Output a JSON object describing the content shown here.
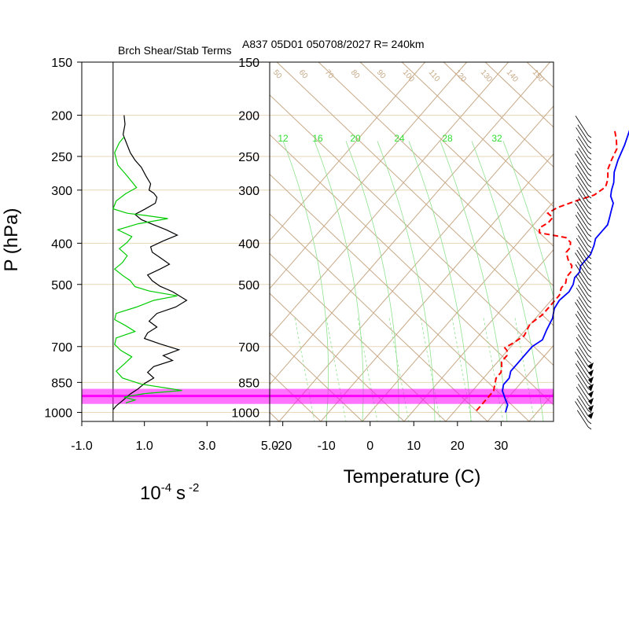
{
  "chart_data": [
    {
      "type": "line",
      "title": "Brch Shear/Stab Terms",
      "xlabel_base": "10",
      "xlabel_exp1": "-4",
      "xlabel_unit": "s",
      "xlabel_exp2": "-2",
      "ylabel": "P (hPa)",
      "x_ticks": [
        "-1.0",
        "1.0",
        "3.0",
        "5.0"
      ],
      "xlim": [
        -1.0,
        5.0
      ],
      "y_scale": "log",
      "ylim": [
        1050,
        150
      ],
      "p_ticks": [
        {
          "p": 150,
          "label": "150"
        },
        {
          "p": 200,
          "label": "200"
        },
        {
          "p": 250,
          "label": "250"
        },
        {
          "p": 300,
          "label": "300"
        },
        {
          "p": 400,
          "label": "400"
        },
        {
          "p": 500,
          "label": "500"
        },
        {
          "p": 700,
          "label": "700"
        },
        {
          "p": 850,
          "label": "850"
        },
        {
          "p": 1000,
          "label": "1000"
        }
      ],
      "series": [
        {
          "color": "#000000",
          "points": [
            [
              0.35,
              200
            ],
            [
              0.38,
              210
            ],
            [
              0.32,
              222
            ],
            [
              0.42,
              232
            ],
            [
              0.55,
              245
            ],
            [
              0.7,
              255
            ],
            [
              0.9,
              265
            ],
            [
              1.05,
              278
            ],
            [
              1.2,
              290
            ],
            [
              1.15,
              300
            ],
            [
              1.3,
              305
            ],
            [
              1.4,
              312
            ],
            [
              1.35,
              322
            ],
            [
              1.0,
              333
            ],
            [
              0.7,
              342
            ],
            [
              0.9,
              352
            ],
            [
              1.3,
              362
            ],
            [
              1.7,
              372
            ],
            [
              2.05,
              383
            ],
            [
              1.6,
              395
            ],
            [
              1.2,
              408
            ],
            [
              1.25,
              420
            ],
            [
              1.55,
              435
            ],
            [
              1.8,
              448
            ],
            [
              1.5,
              460
            ],
            [
              1.1,
              475
            ],
            [
              1.25,
              490
            ],
            [
              1.5,
              505
            ],
            [
              1.9,
              520
            ],
            [
              2.35,
              545
            ],
            [
              2.0,
              565
            ],
            [
              1.4,
              585
            ],
            [
              1.15,
              610
            ],
            [
              1.4,
              630
            ],
            [
              1.1,
              650
            ],
            [
              1.0,
              670
            ],
            [
              1.5,
              690
            ],
            [
              2.1,
              712
            ],
            [
              1.6,
              735
            ],
            [
              1.9,
              755
            ],
            [
              1.3,
              780
            ],
            [
              1.1,
              805
            ],
            [
              1.3,
              830
            ],
            [
              1.0,
              855
            ],
            [
              0.8,
              880
            ],
            [
              0.55,
              905
            ],
            [
              0.4,
              925
            ],
            [
              0.25,
              945
            ],
            [
              0.1,
              965
            ],
            [
              0.0,
              985
            ]
          ]
        },
        {
          "color": "#00cc00",
          "points": [
            [
              0.35,
              225
            ],
            [
              0.2,
              232
            ],
            [
              0.05,
              245
            ],
            [
              0.15,
              262
            ],
            [
              0.45,
              278
            ],
            [
              0.75,
              296
            ],
            [
              0.4,
              306
            ],
            [
              0.1,
              318
            ],
            [
              0.0,
              332
            ],
            [
              0.45,
              340
            ],
            [
              1.0,
              344
            ],
            [
              1.75,
              350
            ],
            [
              0.8,
              360
            ],
            [
              0.15,
              372
            ],
            [
              0.6,
              386
            ],
            [
              0.45,
              398
            ],
            [
              0.2,
              412
            ],
            [
              0.45,
              428
            ],
            [
              0.3,
              444
            ],
            [
              0.05,
              460
            ],
            [
              0.3,
              476
            ],
            [
              0.55,
              490
            ],
            [
              0.7,
              506
            ],
            [
              1.15,
              518
            ],
            [
              2.05,
              532
            ],
            [
              1.3,
              545
            ],
            [
              0.75,
              565
            ],
            [
              0.1,
              585
            ],
            [
              0.05,
              605
            ],
            [
              0.4,
              625
            ],
            [
              0.7,
              645
            ],
            [
              0.1,
              668
            ],
            [
              0.05,
              692
            ],
            [
              0.25,
              715
            ],
            [
              0.6,
              740
            ],
            [
              0.35,
              770
            ],
            [
              0.1,
              800
            ],
            [
              0.3,
              830
            ],
            [
              0.9,
              858
            ],
            [
              2.2,
              888
            ],
            [
              1.0,
              903
            ],
            [
              0.35,
              920
            ],
            [
              0.7,
              935
            ],
            [
              0.4,
              950
            ]
          ]
        }
      ]
    },
    {
      "type": "line",
      "subtype": "skew-t",
      "title": "A837 05D01 050708/2027 R= 240km",
      "xlabel": "Temperature (C)",
      "x_ticks": [
        "-20",
        "-10",
        "0",
        "10",
        "20",
        "30"
      ],
      "xlim": [
        -23,
        42
      ],
      "y_scale": "log",
      "ylim": [
        1050,
        150
      ],
      "p_ticks": [
        {
          "p": 150,
          "label": "150"
        },
        {
          "p": 200,
          "label": "200"
        },
        {
          "p": 250,
          "label": "250"
        },
        {
          "p": 300,
          "label": "300"
        },
        {
          "p": 400,
          "label": "400"
        },
        {
          "p": 500,
          "label": "500"
        },
        {
          "p": 700,
          "label": "700"
        },
        {
          "p": 850,
          "label": "850"
        },
        {
          "p": 1000,
          "label": "1000"
        }
      ],
      "mixing_ratio_labels": [
        "12",
        "16",
        "20",
        "24",
        "28",
        "32"
      ],
      "background_line_labels": [
        "50",
        "60",
        "70",
        "80",
        "90",
        "100",
        "110",
        "120",
        "130",
        "140",
        "150"
      ],
      "series": [
        {
          "name": "Temperature",
          "color": "#0000ff",
          "style": "solid",
          "points": [
            [
              1,
              195
            ],
            [
              3,
              215
            ],
            [
              5,
              235
            ],
            [
              6.5,
              255
            ],
            [
              8,
              272
            ],
            [
              10,
              288
            ],
            [
              11,
              300
            ],
            [
              12,
              310
            ],
            [
              14,
              322
            ],
            [
              15,
              335
            ],
            [
              16,
              348
            ],
            [
              17,
              362
            ],
            [
              17,
              376
            ],
            [
              17,
              390
            ],
            [
              18,
              405
            ],
            [
              19,
              425
            ],
            [
              19,
              440
            ],
            [
              19,
              452
            ],
            [
              20,
              468
            ],
            [
              20,
              482
            ],
            [
              21,
              500
            ],
            [
              21.5,
              520
            ],
            [
              21,
              545
            ],
            [
              21.5,
              570
            ],
            [
              23,
              600
            ],
            [
              24,
              640
            ],
            [
              25,
              675
            ],
            [
              24,
              700
            ],
            [
              24,
              735
            ],
            [
              24,
              770
            ],
            [
              24,
              800
            ],
            [
              25,
              830
            ],
            [
              25,
              860
            ],
            [
              26,
              890
            ],
            [
              28,
              925
            ],
            [
              30,
              960
            ],
            [
              31,
              1000
            ]
          ]
        },
        {
          "name": "Dewpoint",
          "color": "#ff0000",
          "style": "dashed",
          "points": [
            [
              0,
              218
            ],
            [
              2,
              228
            ],
            [
              4,
              240
            ],
            [
              5,
              255
            ],
            [
              6,
              268
            ],
            [
              8,
              283
            ],
            [
              9,
              295
            ],
            [
              8,
              308
            ],
            [
              5,
              318
            ],
            [
              2,
              330
            ],
            [
              1,
              340
            ],
            [
              3,
              348
            ],
            [
              3,
              358
            ],
            [
              2,
              368
            ],
            [
              3,
              378
            ],
            [
              10,
              388
            ],
            [
              12,
              398
            ],
            [
              13,
              410
            ],
            [
              13,
              420
            ],
            [
              15,
              438
            ],
            [
              17,
              452
            ],
            [
              18,
              468
            ],
            [
              18,
              480
            ],
            [
              19,
              496
            ],
            [
              19,
              510
            ],
            [
              20,
              530
            ],
            [
              20,
              560
            ],
            [
              20,
              590
            ],
            [
              19,
              620
            ],
            [
              20,
              660
            ],
            [
              19,
              685
            ],
            [
              18,
              705
            ],
            [
              19,
              715
            ],
            [
              20,
              735
            ],
            [
              20,
              760
            ],
            [
              21,
              780
            ],
            [
              22,
              805
            ],
            [
              22,
              830
            ],
            [
              23,
              860
            ],
            [
              24,
              890
            ],
            [
              24,
              930
            ],
            [
              24,
              970
            ],
            [
              24,
              1000
            ]
          ]
        }
      ]
    }
  ],
  "highlight_band": {
    "p_top": 880,
    "p_bottom": 955,
    "p_center": 915,
    "color": "#ff00ff"
  }
}
